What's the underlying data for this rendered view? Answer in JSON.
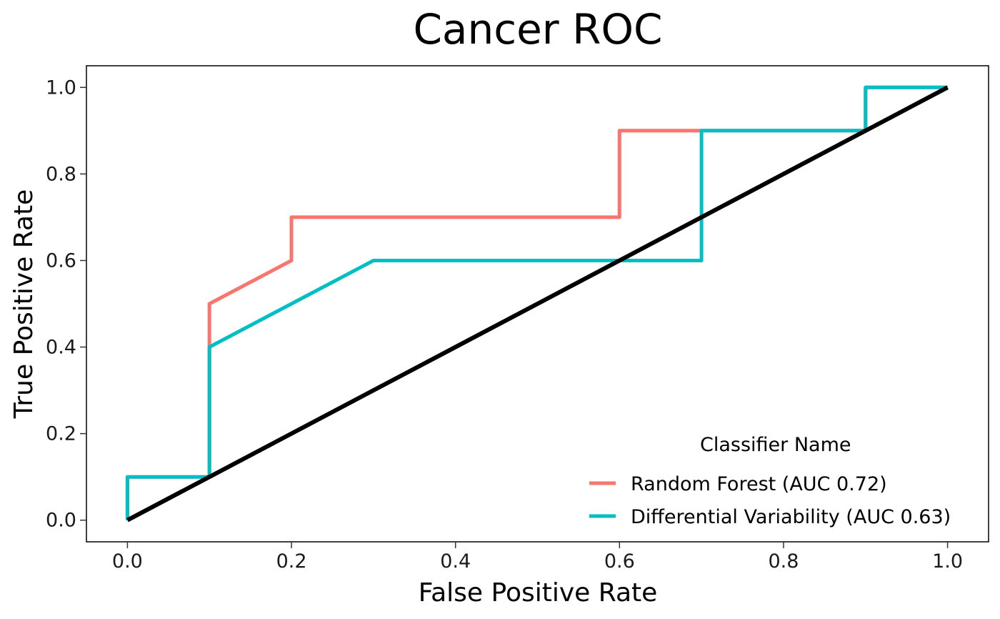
{
  "chart_data": {
    "type": "line",
    "title": "Cancer ROC",
    "xlabel": "False Positive Rate",
    "ylabel": "True Positive Rate",
    "xlim": [
      -0.05,
      1.05
    ],
    "ylim": [
      -0.05,
      1.05
    ],
    "xticks": [
      0.0,
      0.2,
      0.4,
      0.6,
      0.8,
      1.0
    ],
    "yticks": [
      0.0,
      0.2,
      0.4,
      0.6,
      0.8,
      1.0
    ],
    "xtick_labels": [
      "0.0",
      "0.2",
      "0.4",
      "0.6",
      "0.8",
      "1.0"
    ],
    "ytick_labels": [
      "0.0",
      "0.2",
      "0.4",
      "0.6",
      "0.8",
      "1.0"
    ],
    "grid": false,
    "legend": {
      "title": "Classifier Name",
      "placement": "bottom-right"
    },
    "series": [
      {
        "name": "Random Forest (AUC 0.72)",
        "color": "#F8766D",
        "x": [
          0.0,
          0.0,
          0.1,
          0.1,
          0.1,
          0.2,
          0.2,
          0.6,
          0.6,
          0.7,
          0.9,
          0.9,
          1.0
        ],
        "y": [
          0.0,
          0.1,
          0.1,
          0.4,
          0.5,
          0.6,
          0.7,
          0.7,
          0.9,
          0.9,
          0.9,
          1.0,
          1.0
        ]
      },
      {
        "name": "Differential Variability (AUC 0.63)",
        "color": "#00BFC4",
        "x": [
          0.0,
          0.0,
          0.1,
          0.1,
          0.3,
          0.7,
          0.7,
          0.9,
          0.9,
          1.0
        ],
        "y": [
          0.0,
          0.1,
          0.1,
          0.4,
          0.6,
          0.6,
          0.9,
          0.9,
          1.0,
          1.0
        ]
      },
      {
        "color": "#000000",
        "x": [
          0.0,
          1.0
        ],
        "y": [
          0.0,
          1.0
        ]
      }
    ]
  }
}
